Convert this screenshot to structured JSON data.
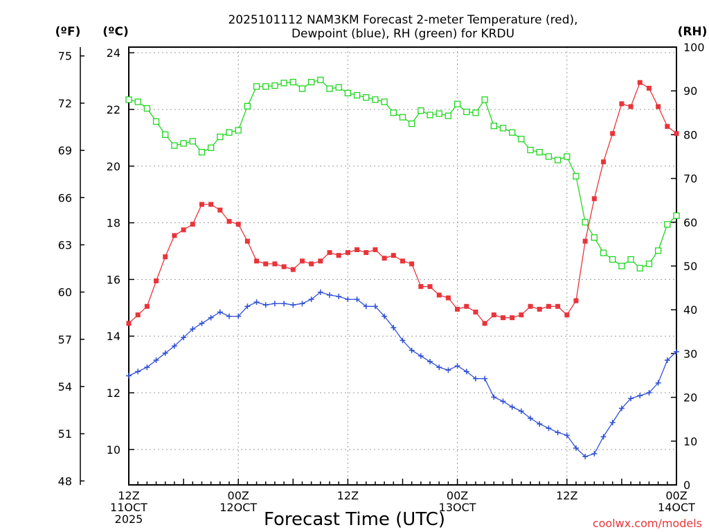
{
  "chart_data": {
    "type": "line",
    "title": [
      "2025101112 NAM3KM Forecast 2-meter Temperature (red),",
      "Dewpoint (blue), RH (green) for KRDU"
    ],
    "xlabel": "Forecast Time (UTC)",
    "credit": "coolwx.com/models",
    "x_hours": [
      0,
      1,
      2,
      3,
      4,
      5,
      6,
      7,
      8,
      9,
      10,
      11,
      12,
      13,
      14,
      15,
      16,
      17,
      18,
      19,
      20,
      21,
      22,
      23,
      24,
      25,
      26,
      27,
      28,
      29,
      30,
      31,
      32,
      33,
      34,
      35,
      36,
      37,
      38,
      39,
      40,
      41,
      42,
      43,
      44,
      45,
      46,
      47,
      48,
      49,
      50,
      51,
      52,
      53,
      54,
      55,
      56,
      57,
      58,
      59,
      60
    ],
    "x_ticks": [
      {
        "hour": 0,
        "lines": [
          "12Z",
          "11OCT",
          "2025"
        ]
      },
      {
        "hour": 12,
        "lines": [
          "00Z",
          "12OCT"
        ]
      },
      {
        "hour": 24,
        "lines": [
          "12Z"
        ]
      },
      {
        "hour": 36,
        "lines": [
          "00Z",
          "13OCT"
        ]
      },
      {
        "hour": 48,
        "lines": [
          "12Z"
        ]
      },
      {
        "hour": 60,
        "lines": [
          "00Z",
          "14OCT"
        ]
      }
    ],
    "x_range": [
      0,
      60
    ],
    "left_axis_c": {
      "unit": "(ºC)",
      "range": [
        8.75,
        24.2
      ],
      "ticks": [
        10,
        12,
        14,
        16,
        18,
        20,
        22,
        24
      ]
    },
    "left_axis_f": {
      "unit": "(ºF)",
      "range": [
        47.75,
        75.56
      ],
      "ticks": [
        48,
        51,
        54,
        57,
        60,
        63,
        66,
        69,
        72,
        75
      ]
    },
    "right_axis_rh": {
      "unit": "(RH)",
      "range": [
        0,
        100
      ],
      "ticks": [
        0,
        10,
        20,
        30,
        40,
        50,
        60,
        70,
        80,
        90,
        100
      ]
    },
    "grid": true,
    "series": [
      {
        "name": "Temperature",
        "unit": "ºC",
        "color": "#e8343a",
        "marker": "filled-square",
        "axis": "left_c",
        "values": [
          14.45,
          14.75,
          15.05,
          15.95,
          16.8,
          17.55,
          17.75,
          17.95,
          18.65,
          18.65,
          18.45,
          18.05,
          17.95,
          17.35,
          16.65,
          16.55,
          16.55,
          16.45,
          16.35,
          16.65,
          16.55,
          16.65,
          16.95,
          16.85,
          16.95,
          17.05,
          16.95,
          17.05,
          16.75,
          16.85,
          16.65,
          16.55,
          15.75,
          15.75,
          15.45,
          15.35,
          14.95,
          15.05,
          14.85,
          14.45,
          14.75,
          14.65,
          14.65,
          14.75,
          15.05,
          14.95,
          15.05,
          15.05,
          14.75,
          15.25,
          17.35,
          18.85,
          20.15,
          21.15,
          22.2,
          22.1,
          22.95,
          22.75,
          22.1,
          21.4,
          21.15
        ]
      },
      {
        "name": "Dewpoint",
        "unit": "ºC",
        "color": "#2f4fd6",
        "marker": "plus",
        "axis": "left_c",
        "values": [
          12.6,
          12.75,
          12.9,
          13.15,
          13.4,
          13.65,
          13.95,
          14.25,
          14.45,
          14.65,
          14.85,
          14.7,
          14.7,
          15.05,
          15.2,
          15.1,
          15.15,
          15.15,
          15.1,
          15.15,
          15.3,
          15.55,
          15.45,
          15.4,
          15.3,
          15.3,
          15.05,
          15.05,
          14.7,
          14.3,
          13.85,
          13.5,
          13.3,
          13.1,
          12.9,
          12.8,
          12.95,
          12.75,
          12.5,
          12.5,
          11.85,
          11.7,
          11.5,
          11.35,
          11.1,
          10.9,
          10.75,
          10.6,
          10.5,
          10.05,
          9.75,
          9.85,
          10.45,
          10.95,
          11.45,
          11.8,
          11.9,
          12.0,
          12.35,
          13.15,
          13.45
        ]
      },
      {
        "name": "RH",
        "unit": "%",
        "color": "#1fd61f",
        "marker": "open-square",
        "axis": "right",
        "values": [
          88,
          87.5,
          86,
          83,
          80,
          77.5,
          78,
          78.5,
          76,
          77,
          79.5,
          80.5,
          81,
          86.5,
          91,
          91,
          91.2,
          91.8,
          92,
          90.5,
          92,
          92.5,
          90.5,
          90.8,
          89.5,
          89,
          88.5,
          88,
          87.5,
          85,
          84,
          82.5,
          85.5,
          84.5,
          84.8,
          84.3,
          87,
          85.2,
          85,
          88,
          82,
          81.5,
          80.5,
          79,
          76.5,
          76,
          75,
          74.2,
          75,
          70.5,
          60,
          56.5,
          53,
          51.5,
          50,
          51.5,
          49.5,
          50.5,
          53.5,
          59.5,
          61.5
        ]
      }
    ]
  }
}
